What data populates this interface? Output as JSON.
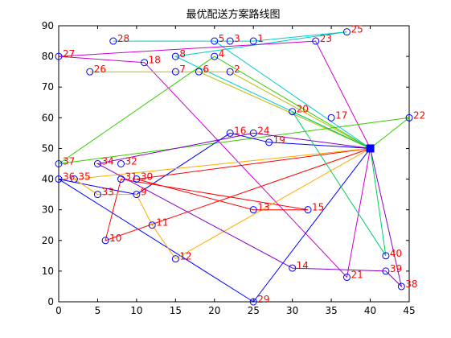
{
  "chart_data": {
    "type": "scatter",
    "title": "最优配送方案路线图",
    "xlabel": "",
    "ylabel": "",
    "xlim": [
      0,
      45
    ],
    "ylim": [
      0,
      90
    ],
    "xticks": [
      0,
      5,
      10,
      15,
      20,
      25,
      30,
      35,
      40,
      45
    ],
    "yticks": [
      0,
      10,
      20,
      30,
      40,
      50,
      60,
      70,
      80,
      90
    ],
    "grid": false,
    "depot": {
      "x": 40,
      "y": 50,
      "color": "#0000ff"
    },
    "points": [
      {
        "id": "1",
        "x": 25,
        "y": 85
      },
      {
        "id": "2",
        "x": 22,
        "y": 75
      },
      {
        "id": "3",
        "x": 22,
        "y": 85
      },
      {
        "id": "4",
        "x": 20,
        "y": 80
      },
      {
        "id": "5",
        "x": 20,
        "y": 85
      },
      {
        "id": "6",
        "x": 18,
        "y": 75
      },
      {
        "id": "7",
        "x": 15,
        "y": 75
      },
      {
        "id": "8",
        "x": 15,
        "y": 80
      },
      {
        "id": "9",
        "x": 10,
        "y": 35
      },
      {
        "id": "10",
        "x": 6,
        "y": 20
      },
      {
        "id": "11",
        "x": 12,
        "y": 25
      },
      {
        "id": "12",
        "x": 15,
        "y": 14
      },
      {
        "id": "13",
        "x": 25,
        "y": 30
      },
      {
        "id": "14",
        "x": 30,
        "y": 11
      },
      {
        "id": "15",
        "x": 32,
        "y": 30
      },
      {
        "id": "16",
        "x": 22,
        "y": 55
      },
      {
        "id": "17",
        "x": 35,
        "y": 60
      },
      {
        "id": "18",
        "x": 11,
        "y": 78
      },
      {
        "id": "19",
        "x": 27,
        "y": 52
      },
      {
        "id": "20",
        "x": 30,
        "y": 62
      },
      {
        "id": "21",
        "x": 37,
        "y": 8
      },
      {
        "id": "22",
        "x": 45,
        "y": 60
      },
      {
        "id": "23",
        "x": 33,
        "y": 85
      },
      {
        "id": "24",
        "x": 25,
        "y": 55
      },
      {
        "id": "25",
        "x": 37,
        "y": 88
      },
      {
        "id": "26",
        "x": 4,
        "y": 75
      },
      {
        "id": "27",
        "x": 0,
        "y": 80
      },
      {
        "id": "28",
        "x": 7,
        "y": 85
      },
      {
        "id": "29",
        "x": 25,
        "y": 0
      },
      {
        "id": "30",
        "x": 10,
        "y": 40
      },
      {
        "id": "31",
        "x": 8,
        "y": 40
      },
      {
        "id": "32",
        "x": 8,
        "y": 45
      },
      {
        "id": "33",
        "x": 5,
        "y": 35
      },
      {
        "id": "34",
        "x": 5,
        "y": 45
      },
      {
        "id": "35",
        "x": 2,
        "y": 40
      },
      {
        "id": "36",
        "x": 0,
        "y": 40
      },
      {
        "id": "37",
        "x": 0,
        "y": 45
      },
      {
        "id": "38",
        "x": 44,
        "y": 5
      },
      {
        "id": "39",
        "x": 42,
        "y": 10
      },
      {
        "id": "40",
        "x": 42,
        "y": 15
      }
    ],
    "routes": [
      {
        "color": "#00cccc",
        "path": [
          [
            40,
            50
          ],
          [
            20,
            85
          ],
          [
            7,
            85
          ],
          [
            25,
            85
          ],
          [
            37,
            88
          ],
          [
            15,
            80
          ],
          [
            40,
            50
          ]
        ]
      },
      {
        "color": "#cc00cc",
        "path": [
          [
            40,
            50
          ],
          [
            33,
            85
          ],
          [
            0,
            80
          ],
          [
            11,
            78
          ],
          [
            37,
            8
          ],
          [
            40,
            50
          ]
        ]
      },
      {
        "color": "#bbbb00",
        "path": [
          [
            40,
            50
          ],
          [
            18,
            75
          ],
          [
            4,
            75
          ],
          [
            15,
            75
          ],
          [
            22,
            75
          ],
          [
            40,
            50
          ]
        ]
      },
      {
        "color": "#33cc00",
        "path": [
          [
            40,
            50
          ],
          [
            20,
            80
          ],
          [
            0,
            45
          ],
          [
            45,
            60
          ],
          [
            40,
            50
          ]
        ]
      },
      {
        "color": "#0000ff",
        "path": [
          [
            40,
            50
          ],
          [
            27,
            52
          ],
          [
            22,
            55
          ],
          [
            10,
            35
          ],
          [
            0,
            40
          ],
          [
            25,
            0
          ],
          [
            40,
            50
          ]
        ]
      },
      {
        "color": "#ff0000",
        "path": [
          [
            40,
            50
          ],
          [
            6,
            20
          ],
          [
            8,
            40
          ],
          [
            32,
            30
          ],
          [
            25,
            30
          ],
          [
            10,
            40
          ],
          [
            40,
            50
          ]
        ]
      },
      {
        "color": "#ffaa00",
        "path": [
          [
            40,
            50
          ],
          [
            15,
            14
          ],
          [
            12,
            25
          ],
          [
            10,
            35
          ],
          [
            5,
            35
          ],
          [
            2,
            40
          ],
          [
            40,
            50
          ]
        ]
      },
      {
        "color": "#8800cc",
        "path": [
          [
            40,
            50
          ],
          [
            25,
            55
          ],
          [
            5,
            45
          ],
          [
            30,
            11
          ],
          [
            42,
            10
          ],
          [
            44,
            5
          ],
          [
            40,
            50
          ]
        ]
      },
      {
        "color": "#00cc66",
        "path": [
          [
            40,
            50
          ],
          [
            30,
            62
          ],
          [
            42,
            15
          ],
          [
            40,
            50
          ]
        ]
      }
    ]
  }
}
